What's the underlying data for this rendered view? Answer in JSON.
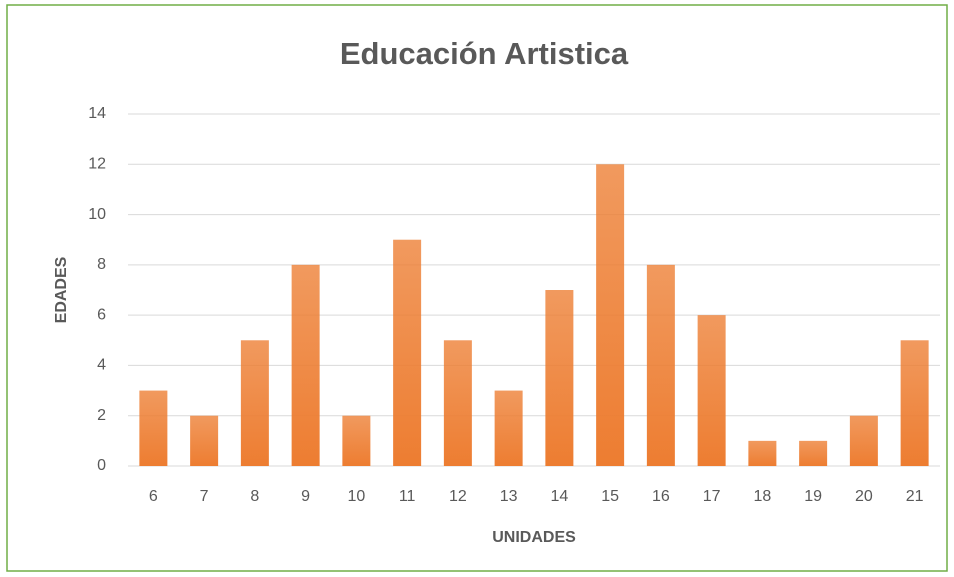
{
  "chart_data": {
    "type": "bar",
    "title": "Educación Artistica",
    "x_label": "UNIDADES",
    "y_label": "EDADES",
    "categories": [
      "6",
      "7",
      "8",
      "9",
      "10",
      "11",
      "12",
      "13",
      "14",
      "15",
      "16",
      "17",
      "18",
      "19",
      "20",
      "21"
    ],
    "values": [
      3,
      2,
      5,
      8,
      2,
      9,
      5,
      3,
      7,
      12,
      8,
      6,
      1,
      1,
      2,
      5
    ],
    "color": "#ed7d31",
    "ylim": [
      0,
      14
    ],
    "yticks": [
      0,
      2,
      4,
      6,
      8,
      10,
      12,
      14
    ],
    "grid": true
  }
}
